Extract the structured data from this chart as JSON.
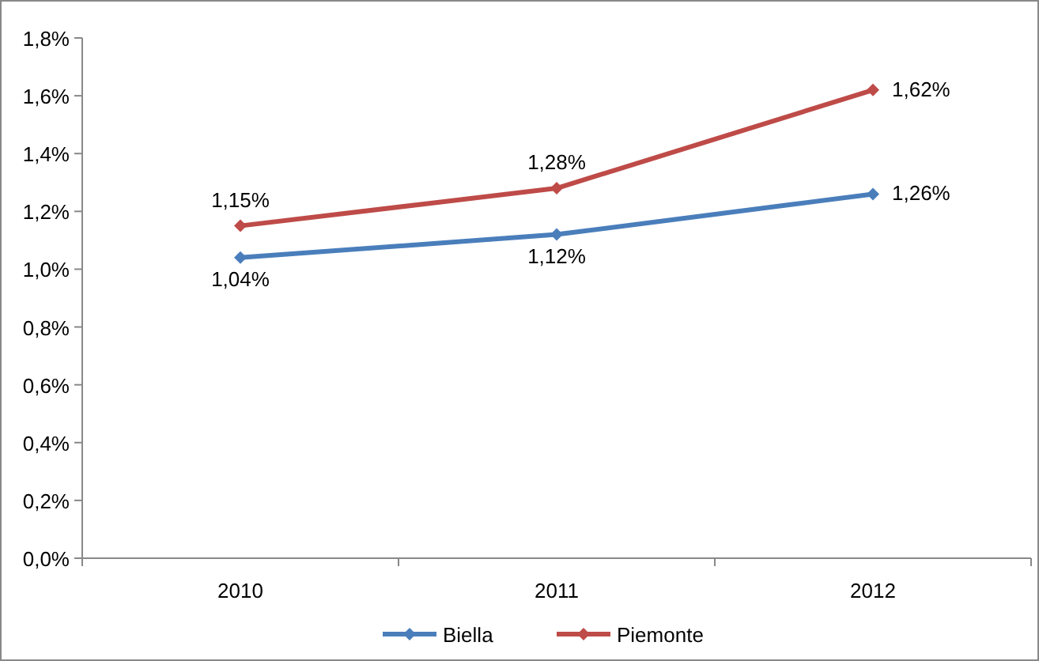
{
  "chart_data": {
    "type": "line",
    "categories": [
      "2010",
      "2011",
      "2012"
    ],
    "series": [
      {
        "name": "Biella",
        "color": "#4a7ebb",
        "values": [
          1.04,
          1.12,
          1.26
        ],
        "value_labels": [
          "1,04%",
          "1,12%",
          "1,26%"
        ]
      },
      {
        "name": "Piemonte",
        "color": "#be4b48",
        "values": [
          1.15,
          1.28,
          1.62
        ],
        "value_labels": [
          "1,15%",
          "1,28%",
          "1,62%"
        ]
      }
    ],
    "ylim": [
      0,
      1.8
    ],
    "yticks": [
      {
        "value": 0,
        "label": "0,0%"
      },
      {
        "value": 0.2,
        "label": "0,2%"
      },
      {
        "value": 0.4,
        "label": "0,4%"
      },
      {
        "value": 0.6,
        "label": "0,6%"
      },
      {
        "value": 0.8,
        "label": "0,8%"
      },
      {
        "value": 1.0,
        "label": "1,0%"
      },
      {
        "value": 1.2,
        "label": "1,2%"
      },
      {
        "value": 1.4,
        "label": "1,4%"
      },
      {
        "value": 1.6,
        "label": "1,6%"
      },
      {
        "value": 1.8,
        "label": "1,8%"
      }
    ],
    "grid": false,
    "legend": "bottom",
    "marker": "diamond",
    "line_style": "solid"
  }
}
